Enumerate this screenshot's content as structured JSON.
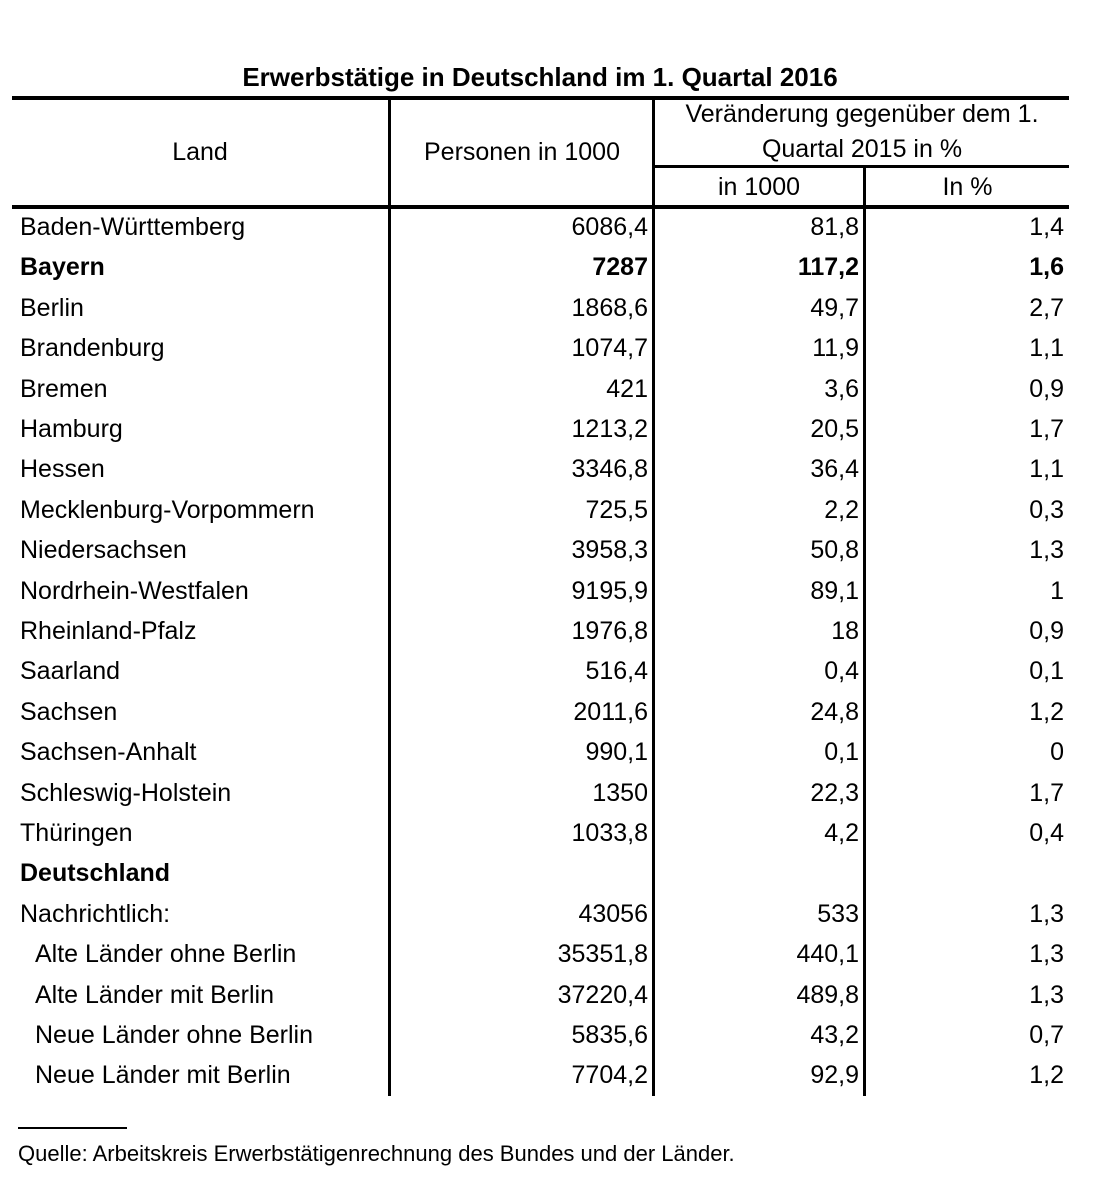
{
  "title": "Erwerbstätige in Deutschland im 1. Quartal 2016",
  "headers": {
    "land": "Land",
    "personen": "Personen in 1000",
    "veraenderung_line1": "Veränderung gegenüber dem 1.",
    "veraenderung_line2": "Quartal 2015 in %",
    "in1000": "in 1000",
    "inpct": "In %"
  },
  "rows": [
    {
      "land": "Baden-Württemberg",
      "personen": "6086,4",
      "in1000": "81,8",
      "pct": "1,4"
    },
    {
      "land": "Bayern",
      "personen": "7287",
      "in1000": "117,2",
      "pct": "1,6",
      "bold": true
    },
    {
      "land": "Berlin",
      "personen": "1868,6",
      "in1000": "49,7",
      "pct": "2,7"
    },
    {
      "land": "Brandenburg",
      "personen": "1074,7",
      "in1000": "11,9",
      "pct": "1,1"
    },
    {
      "land": "Bremen",
      "personen": "421",
      "in1000": "3,6",
      "pct": "0,9"
    },
    {
      "land": "Hamburg",
      "personen": "1213,2",
      "in1000": "20,5",
      "pct": "1,7"
    },
    {
      "land": "Hessen",
      "personen": "3346,8",
      "in1000": "36,4",
      "pct": "1,1"
    },
    {
      "land": "Mecklenburg-Vorpommern",
      "personen": "725,5",
      "in1000": "2,2",
      "pct": "0,3"
    },
    {
      "land": "Niedersachsen",
      "personen": "3958,3",
      "in1000": "50,8",
      "pct": "1,3"
    },
    {
      "land": "Nordrhein-Westfalen",
      "personen": "9195,9",
      "in1000": "89,1",
      "pct": "1"
    },
    {
      "land": "Rheinland-Pfalz",
      "personen": "1976,8",
      "in1000": "18",
      "pct": "0,9"
    },
    {
      "land": "Saarland",
      "personen": "516,4",
      "in1000": "0,4",
      "pct": "0,1"
    },
    {
      "land": "Sachsen",
      "personen": "2011,6",
      "in1000": "24,8",
      "pct": "1,2"
    },
    {
      "land": "Sachsen-Anhalt",
      "personen": "990,1",
      "in1000": "0,1",
      "pct": "0"
    },
    {
      "land": "Schleswig-Holstein",
      "personen": "1350",
      "in1000": "22,3",
      "pct": "1,7"
    },
    {
      "land": "Thüringen",
      "personen": "1033,8",
      "in1000": "4,2",
      "pct": "0,4"
    },
    {
      "land": "Deutschland",
      "personen": "",
      "in1000": "",
      "pct": "",
      "bold": true
    },
    {
      "land": "Nachrichtlich:",
      "personen": "43056",
      "in1000": "533",
      "pct": "1,3"
    },
    {
      "land": "Alte Länder ohne Berlin",
      "personen": "35351,8",
      "in1000": "440,1",
      "pct": "1,3",
      "indent": true
    },
    {
      "land": "Alte Länder mit Berlin",
      "personen": "37220,4",
      "in1000": "489,8",
      "pct": "1,3",
      "indent": true
    },
    {
      "land": "Neue Länder ohne Berlin",
      "personen": "5835,6",
      "in1000": "43,2",
      "pct": "0,7",
      "indent": true
    },
    {
      "land": "Neue Länder mit Berlin",
      "personen": "7704,2",
      "in1000": "92,9",
      "pct": "1,2",
      "indent": true
    }
  ],
  "source": "Quelle: Arbeitskreis Erwerbstätigenrechnung des Bundes und der Länder."
}
